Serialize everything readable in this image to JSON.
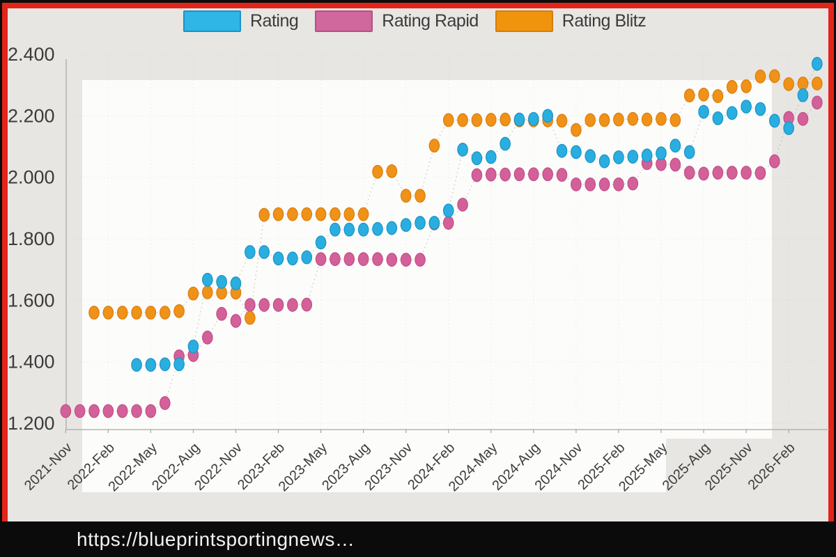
{
  "frame": {
    "border_color": "#e1251b",
    "outer_color": "#0c0c0c",
    "bg_color": "#e8e6e3",
    "panel_color": "#fcfcfa"
  },
  "url_bar": {
    "text": "https://blueprintsportingnews…",
    "bg": "#0b0b0b",
    "text_color": "#f2f2f2"
  },
  "legend": {
    "items": [
      {
        "label": "Rating",
        "color": "#2fb5e6",
        "border": "#1a93c6"
      },
      {
        "label": "Rating Rapid",
        "color": "#d0689e",
        "border": "#b44f85"
      },
      {
        "label": "Rating Blitz",
        "color": "#f0940e",
        "border": "#d47c0a"
      }
    ]
  },
  "chart_data": {
    "type": "scatter",
    "title": "",
    "xlabel": "",
    "ylabel": "",
    "x_monthly_start": "2021-11",
    "x_months_total": 54,
    "x_tick_every_months": 3,
    "x_tick_labels": [
      "2021-Nov",
      "2022-Feb",
      "2022-May",
      "2022-Aug",
      "2022-Nov",
      "2023-Feb",
      "2023-May",
      "2023-Aug",
      "2023-Nov",
      "2024-Feb",
      "2024-May",
      "2024-Aug",
      "2024-Nov",
      "2025-Feb",
      "2025-May",
      "2025-Aug",
      "2025-Nov",
      "2026-Feb"
    ],
    "y_ticks": [
      1200,
      1400,
      1600,
      1800,
      2000,
      2200,
      2400
    ],
    "y_tick_labels": [
      "1.200",
      "1.400",
      "1.600",
      "1.800",
      "2.000",
      "2.200",
      "2.400"
    ],
    "ylim": [
      1180,
      2420
    ],
    "grid": true,
    "legend_position": "top",
    "series": [
      {
        "name": "Rating",
        "color": "#2aaee0",
        "stroke": "#1893c7",
        "start_month_index": 5,
        "values": [
          1390,
          1390,
          1392,
          1392,
          1450,
          1667,
          1660,
          1655,
          1757,
          1757,
          1736,
          1736,
          1740,
          1788,
          1830,
          1830,
          1830,
          1832,
          1835,
          1845,
          1852,
          1852,
          1892,
          2090,
          2062,
          2066,
          2109,
          2188,
          2190,
          2200,
          2086,
          2082,
          2069,
          2052,
          2065,
          2067,
          2071,
          2078,
          2103,
          2082,
          2213,
          2192,
          2209,
          2230,
          2222,
          2184,
          2160,
          2267,
          2369
        ]
      },
      {
        "name": "Rating Rapid",
        "color": "#d4609a",
        "stroke": "#bf4e86",
        "start_month_index": 0,
        "values": [
          1240,
          1240,
          1240,
          1240,
          1240,
          1240,
          1240,
          1266,
          1418,
          1422,
          1479,
          1556,
          1533,
          1585,
          1585,
          1585,
          1585,
          1586,
          1734,
          1734,
          1734,
          1734,
          1734,
          1732,
          1732,
          1732,
          1850,
          1852,
          1911,
          2007,
          2009,
          2009,
          2010,
          2010,
          2010,
          2008,
          1977,
          1977,
          1977,
          1977,
          1980,
          2046,
          2043,
          2041,
          2015,
          2012,
          2015,
          2015,
          2015,
          2014,
          2052,
          2193,
          2190,
          2243
        ]
      },
      {
        "name": "Rating Blitz",
        "color": "#f09118",
        "stroke": "#d97f0e",
        "start_month_index": 2,
        "values": [
          1560,
          1560,
          1560,
          1560,
          1560,
          1560,
          1565,
          1622,
          1626,
          1625,
          1625,
          1543,
          1878,
          1880,
          1880,
          1880,
          1880,
          1880,
          1880,
          1880,
          2018,
          2020,
          1940,
          1940,
          2103,
          2186,
          2186,
          2186,
          2187,
          2188,
          2185,
          2185,
          2185,
          2184,
          2154,
          2186,
          2186,
          2188,
          2190,
          2188,
          2190,
          2186,
          2266,
          2269,
          2264,
          2294,
          2296,
          2328,
          2329,
          2303,
          2305,
          2305
        ]
      }
    ]
  }
}
